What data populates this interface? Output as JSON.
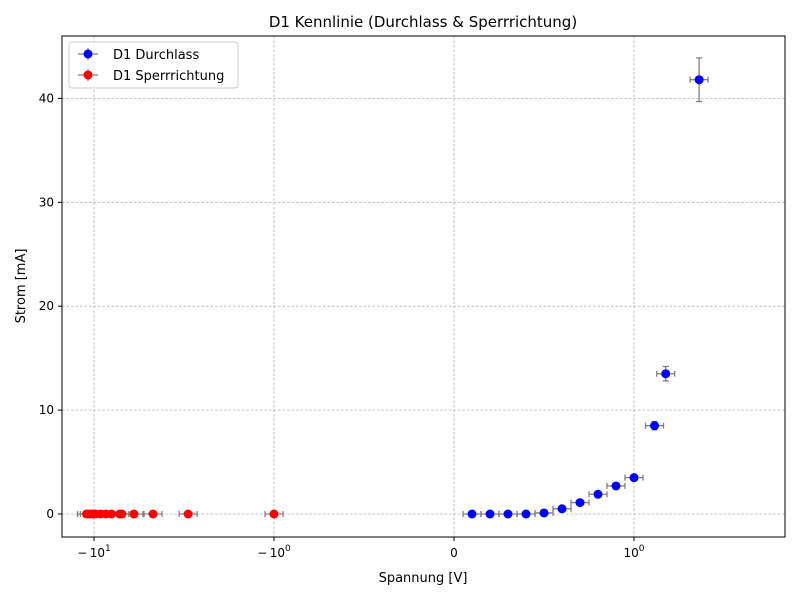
{
  "chart_data": {
    "type": "scatter",
    "title": "D1 Kennlinie (Durchlass & Sperrrichtung)",
    "xlabel": "Spannung [V]",
    "ylabel": "Strom [mA]",
    "x_scale": "symlog",
    "x_ticks": [
      "− 10^1",
      "− 10^0",
      "0",
      "10^0"
    ],
    "y_ticks": [
      0,
      10,
      20,
      30,
      40
    ],
    "ylim": [
      -2.1,
      46
    ],
    "grid": true,
    "legend_position": "top-left",
    "series": [
      {
        "name": "D1 Durchlass",
        "color": "#0000ff",
        "marker": "circle",
        "points": [
          {
            "x": 0.1,
            "y": 0.0,
            "yerr": 0.0
          },
          {
            "x": 0.2,
            "y": 0.0,
            "yerr": 0.0
          },
          {
            "x": 0.3,
            "y": 0.0,
            "yerr": 0.0
          },
          {
            "x": 0.4,
            "y": 0.0,
            "yerr": 0.0
          },
          {
            "x": 0.5,
            "y": 0.1,
            "yerr": 0.05
          },
          {
            "x": 0.6,
            "y": 0.5,
            "yerr": 0.05
          },
          {
            "x": 0.7,
            "y": 1.1,
            "yerr": 0.1
          },
          {
            "x": 0.8,
            "y": 1.9,
            "yerr": 0.1
          },
          {
            "x": 0.9,
            "y": 2.7,
            "yerr": 0.15
          },
          {
            "x": 1.0,
            "y": 3.5,
            "yerr": 0.2
          },
          {
            "x": 1.3,
            "y": 8.5,
            "yerr": 0.4
          },
          {
            "x": 1.5,
            "y": 13.5,
            "yerr": 0.7
          },
          {
            "x": 2.3,
            "y": 41.8,
            "yerr": 2.1
          }
        ]
      },
      {
        "name": "D1 Sperrrichtung",
        "color": "#ff0000",
        "marker": "circle",
        "points": [
          {
            "x": -1.0,
            "y": 0.0,
            "yerr": 0.0
          },
          {
            "x": -3.0,
            "y": 0.0,
            "yerr": 0.0
          },
          {
            "x": -4.7,
            "y": 0.0,
            "yerr": 0.0
          },
          {
            "x": -6.0,
            "y": 0.0,
            "yerr": 0.0
          },
          {
            "x": -7.0,
            "y": 0.0,
            "yerr": 0.0
          },
          {
            "x": -7.2,
            "y": 0.0,
            "yerr": 0.0
          },
          {
            "x": -8.0,
            "y": 0.0,
            "yerr": 0.0
          },
          {
            "x": -8.6,
            "y": 0.0,
            "yerr": 0.0
          },
          {
            "x": -9.2,
            "y": 0.0,
            "yerr": 0.0
          },
          {
            "x": -9.8,
            "y": 0.0,
            "yerr": 0.0
          },
          {
            "x": -10.2,
            "y": 0.0,
            "yerr": 0.0
          },
          {
            "x": -10.6,
            "y": 0.0,
            "yerr": 0.0
          },
          {
            "x": -11.0,
            "y": 0.0,
            "yerr": 0.0
          }
        ]
      }
    ]
  }
}
